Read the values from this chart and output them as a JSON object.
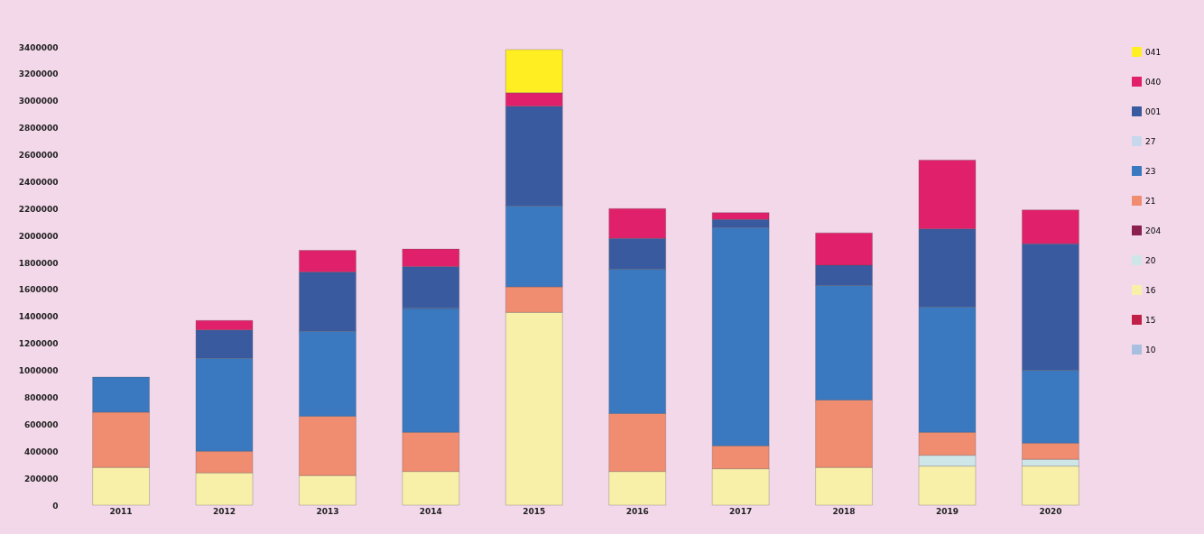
{
  "chart_data": {
    "type": "bar",
    "stacked": true,
    "categories": [
      "2011",
      "2012",
      "2013",
      "2014",
      "2015",
      "2016",
      "2017",
      "2018",
      "2019",
      "2020"
    ],
    "series": [
      {
        "name": "10",
        "color": "#a8c0e0",
        "values": [
          null,
          null,
          null,
          null,
          null,
          null,
          null,
          null,
          null,
          null
        ]
      },
      {
        "name": "15",
        "color": "#c02048",
        "values": [
          null,
          null,
          null,
          null,
          null,
          null,
          null,
          null,
          null,
          null
        ]
      },
      {
        "name": "16",
        "color": "#f8f0a8",
        "values": [
          280000,
          240000,
          220000,
          250000,
          1430000,
          250000,
          270000,
          280000,
          290000,
          290000
        ]
      },
      {
        "name": "20",
        "color": "#cfe6e8",
        "values": [
          null,
          null,
          null,
          null,
          null,
          null,
          null,
          null,
          80000,
          50000
        ]
      },
      {
        "name": "204",
        "color": "#8a2050",
        "values": [
          null,
          null,
          null,
          null,
          null,
          null,
          null,
          null,
          null,
          null
        ]
      },
      {
        "name": "21",
        "color": "#f08c70",
        "values": [
          410000,
          160000,
          440000,
          290000,
          190000,
          430000,
          170000,
          500000,
          170000,
          120000
        ]
      },
      {
        "name": "23",
        "color": "#3a78c0",
        "values": [
          260000,
          690000,
          630000,
          920000,
          600000,
          1070000,
          1620000,
          850000,
          930000,
          540000
        ]
      },
      {
        "name": "27",
        "color": "#c8d8ec",
        "values": [
          null,
          null,
          null,
          null,
          null,
          null,
          null,
          null,
          null,
          null
        ]
      },
      {
        "name": "001",
        "color": "#3a5aa0",
        "values": [
          null,
          210000,
          440000,
          310000,
          740000,
          230000,
          60000,
          150000,
          580000,
          940000
        ]
      },
      {
        "name": "040",
        "color": "#e0206a",
        "values": [
          null,
          70000,
          160000,
          130000,
          100000,
          220000,
          50000,
          240000,
          510000,
          250000
        ]
      },
      {
        "name": "041",
        "color": "#ffee22",
        "values": [
          null,
          null,
          null,
          null,
          320000,
          null,
          null,
          null,
          null,
          null
        ]
      }
    ],
    "ylim": [
      0,
      3400000
    ],
    "yticks": [
      0,
      200000,
      400000,
      600000,
      800000,
      1000000,
      1200000,
      1400000,
      1600000,
      1800000,
      2000000,
      2200000,
      2400000,
      2600000,
      2800000,
      3000000,
      3200000,
      3400000
    ],
    "grid": false,
    "legend": "right"
  }
}
